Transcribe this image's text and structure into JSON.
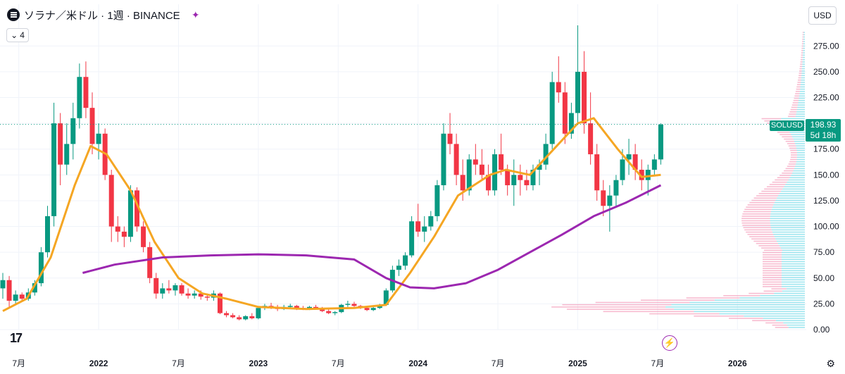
{
  "header": {
    "title": "ソラナ／米ドル · 1週 · BINANCE",
    "indicator_count": "4",
    "currency": "USD"
  },
  "price": {
    "symbol": "SOLUSD",
    "last": "198.93",
    "countdown": "5d 18h"
  },
  "colors": {
    "up": "#089981",
    "down": "#f23645",
    "ma_fast": "#f5a623",
    "ma_slow": "#9c27b0",
    "vp_up": "#80deea",
    "vp_down": "#f48fb1"
  },
  "icons": [
    "symbol-icon",
    "alert-share-icon",
    "chevron-down-icon",
    "tradingview-logo-icon",
    "flash-icon",
    "settings-icon"
  ],
  "chart_data": {
    "type": "candlestick",
    "x_axis_labels": [
      "7月",
      "2022",
      "7月",
      "2023",
      "7月",
      "2024",
      "7月",
      "2025",
      "7月",
      "2026"
    ],
    "y_ticks": [
      "275.00",
      "250.00",
      "225.00",
      "200.00",
      "175.00",
      "150.00",
      "125.00",
      "100.00",
      "75.00",
      "50.00",
      "25.00",
      "0.00"
    ],
    "ylim": [
      0,
      295
    ],
    "last_price": 198.93,
    "grid": true,
    "candles": [
      [
        2021.4,
        40,
        55,
        30,
        48
      ],
      [
        2021.44,
        48,
        52,
        22,
        28
      ],
      [
        2021.48,
        28,
        38,
        24,
        34
      ],
      [
        2021.52,
        34,
        36,
        27,
        30
      ],
      [
        2021.56,
        30,
        40,
        28,
        36
      ],
      [
        2021.6,
        36,
        48,
        33,
        45
      ],
      [
        2021.64,
        45,
        80,
        42,
        75
      ],
      [
        2021.68,
        75,
        120,
        70,
        110
      ],
      [
        2021.72,
        110,
        220,
        100,
        200
      ],
      [
        2021.76,
        200,
        210,
        140,
        160
      ],
      [
        2021.8,
        160,
        200,
        150,
        180
      ],
      [
        2021.84,
        180,
        220,
        165,
        205
      ],
      [
        2021.88,
        205,
        258,
        195,
        245
      ],
      [
        2021.92,
        245,
        260,
        205,
        215
      ],
      [
        2021.96,
        215,
        230,
        170,
        180
      ],
      [
        2022.0,
        180,
        200,
        165,
        190
      ],
      [
        2022.04,
        190,
        195,
        145,
        150
      ],
      [
        2022.08,
        150,
        155,
        85,
        100
      ],
      [
        2022.12,
        100,
        110,
        85,
        95
      ],
      [
        2022.16,
        95,
        100,
        80,
        90
      ],
      [
        2022.2,
        90,
        140,
        85,
        135
      ],
      [
        2022.24,
        135,
        138,
        95,
        100
      ],
      [
        2022.28,
        100,
        105,
        75,
        80
      ],
      [
        2022.32,
        80,
        85,
        45,
        50
      ],
      [
        2022.36,
        50,
        55,
        30,
        35
      ],
      [
        2022.4,
        35,
        45,
        30,
        40
      ],
      [
        2022.44,
        40,
        48,
        35,
        38
      ],
      [
        2022.48,
        38,
        45,
        33,
        43
      ],
      [
        2022.52,
        43,
        45,
        33,
        35
      ],
      [
        2022.56,
        35,
        40,
        30,
        33
      ],
      [
        2022.6,
        33,
        38,
        30,
        35
      ],
      [
        2022.64,
        35,
        38,
        29,
        32
      ],
      [
        2022.68,
        32,
        35,
        28,
        31
      ],
      [
        2022.72,
        31,
        38,
        28,
        35
      ],
      [
        2022.76,
        35,
        36,
        15,
        16
      ],
      [
        2022.8,
        16,
        18,
        12,
        14
      ],
      [
        2022.84,
        14,
        16,
        11,
        12
      ],
      [
        2022.88,
        12,
        14,
        9,
        10
      ],
      [
        2022.92,
        10,
        14,
        9,
        13
      ],
      [
        2022.96,
        13,
        16,
        10,
        11
      ],
      [
        2023.0,
        11,
        22,
        10,
        21
      ],
      [
        2023.04,
        21,
        25,
        19,
        23
      ],
      [
        2023.08,
        23,
        26,
        20,
        22
      ],
      [
        2023.12,
        22,
        24,
        18,
        20
      ],
      [
        2023.16,
        20,
        24,
        19,
        22
      ],
      [
        2023.2,
        22,
        25,
        20,
        23
      ],
      [
        2023.24,
        23,
        24,
        19,
        21
      ],
      [
        2023.28,
        21,
        23,
        19,
        20
      ],
      [
        2023.32,
        20,
        23,
        19,
        22
      ],
      [
        2023.36,
        22,
        24,
        20,
        21
      ],
      [
        2023.4,
        21,
        22,
        17,
        18
      ],
      [
        2023.44,
        18,
        20,
        15,
        16
      ],
      [
        2023.48,
        16,
        18,
        14,
        17
      ],
      [
        2023.52,
        17,
        25,
        16,
        24
      ],
      [
        2023.56,
        24,
        28,
        22,
        25
      ],
      [
        2023.6,
        25,
        27,
        22,
        23
      ],
      [
        2023.64,
        23,
        24,
        20,
        21
      ],
      [
        2023.68,
        21,
        23,
        18,
        19
      ],
      [
        2023.72,
        19,
        22,
        18,
        21
      ],
      [
        2023.76,
        21,
        25,
        20,
        24
      ],
      [
        2023.8,
        24,
        40,
        23,
        38
      ],
      [
        2023.84,
        38,
        62,
        36,
        58
      ],
      [
        2023.88,
        58,
        68,
        52,
        62
      ],
      [
        2023.92,
        62,
        75,
        58,
        72
      ],
      [
        2023.96,
        72,
        110,
        70,
        105
      ],
      [
        2024.0,
        105,
        122,
        90,
        95
      ],
      [
        2024.04,
        95,
        110,
        85,
        100
      ],
      [
        2024.08,
        100,
        115,
        96,
        110
      ],
      [
        2024.12,
        110,
        145,
        105,
        140
      ],
      [
        2024.16,
        140,
        200,
        135,
        190
      ],
      [
        2024.2,
        190,
        210,
        170,
        180
      ],
      [
        2024.24,
        180,
        190,
        140,
        150
      ],
      [
        2024.28,
        150,
        165,
        125,
        135
      ],
      [
        2024.32,
        135,
        170,
        130,
        165
      ],
      [
        2024.36,
        165,
        180,
        150,
        160
      ],
      [
        2024.4,
        160,
        175,
        145,
        150
      ],
      [
        2024.44,
        150,
        160,
        130,
        135
      ],
      [
        2024.48,
        135,
        175,
        130,
        170
      ],
      [
        2024.52,
        170,
        190,
        150,
        155
      ],
      [
        2024.56,
        155,
        160,
        130,
        140
      ],
      [
        2024.6,
        140,
        165,
        120,
        150
      ],
      [
        2024.64,
        150,
        160,
        130,
        145
      ],
      [
        2024.68,
        145,
        155,
        135,
        140
      ],
      [
        2024.72,
        140,
        160,
        135,
        155
      ],
      [
        2024.76,
        155,
        165,
        140,
        160
      ],
      [
        2024.8,
        160,
        190,
        155,
        180
      ],
      [
        2024.84,
        180,
        250,
        175,
        240
      ],
      [
        2024.88,
        240,
        265,
        220,
        230
      ],
      [
        2024.92,
        230,
        240,
        180,
        190
      ],
      [
        2024.96,
        190,
        220,
        185,
        210
      ],
      [
        2025.0,
        210,
        295,
        200,
        250
      ],
      [
        2025.04,
        250,
        270,
        190,
        200
      ],
      [
        2025.08,
        200,
        230,
        160,
        170
      ],
      [
        2025.12,
        170,
        180,
        125,
        135
      ],
      [
        2025.16,
        135,
        145,
        110,
        120
      ],
      [
        2025.2,
        120,
        140,
        95,
        130
      ],
      [
        2025.24,
        130,
        150,
        120,
        145
      ],
      [
        2025.28,
        145,
        175,
        140,
        165
      ],
      [
        2025.32,
        165,
        185,
        150,
        170
      ],
      [
        2025.36,
        170,
        180,
        145,
        155
      ],
      [
        2025.4,
        155,
        165,
        135,
        145
      ],
      [
        2025.44,
        145,
        160,
        130,
        155
      ],
      [
        2025.48,
        155,
        170,
        150,
        165
      ],
      [
        2025.52,
        165,
        200,
        160,
        198.93
      ]
    ],
    "ma_fast": [
      [
        2021.4,
        18
      ],
      [
        2021.55,
        30
      ],
      [
        2021.7,
        70
      ],
      [
        2021.85,
        140
      ],
      [
        2021.95,
        178
      ],
      [
        2022.05,
        170
      ],
      [
        2022.2,
        135
      ],
      [
        2022.35,
        85
      ],
      [
        2022.5,
        50
      ],
      [
        2022.65,
        35
      ],
      [
        2022.8,
        30
      ],
      [
        2023.0,
        22
      ],
      [
        2023.3,
        20
      ],
      [
        2023.6,
        21
      ],
      [
        2023.8,
        24
      ],
      [
        2023.95,
        55
      ],
      [
        2024.1,
        90
      ],
      [
        2024.25,
        130
      ],
      [
        2024.45,
        150
      ],
      [
        2024.55,
        155
      ],
      [
        2024.7,
        150
      ],
      [
        2024.85,
        175
      ],
      [
        2025.0,
        200
      ],
      [
        2025.1,
        205
      ],
      [
        2025.25,
        175
      ],
      [
        2025.4,
        148
      ],
      [
        2025.52,
        150
      ]
    ],
    "ma_slow": [
      [
        2021.9,
        55
      ],
      [
        2022.1,
        63
      ],
      [
        2022.4,
        70
      ],
      [
        2022.7,
        72
      ],
      [
        2023.0,
        73
      ],
      [
        2023.3,
        72
      ],
      [
        2023.6,
        68
      ],
      [
        2023.8,
        50
      ],
      [
        2023.95,
        41
      ],
      [
        2024.1,
        40
      ],
      [
        2024.3,
        45
      ],
      [
        2024.5,
        58
      ],
      [
        2024.7,
        75
      ],
      [
        2024.9,
        92
      ],
      [
        2025.1,
        110
      ],
      [
        2025.3,
        123
      ],
      [
        2025.52,
        140
      ]
    ]
  }
}
